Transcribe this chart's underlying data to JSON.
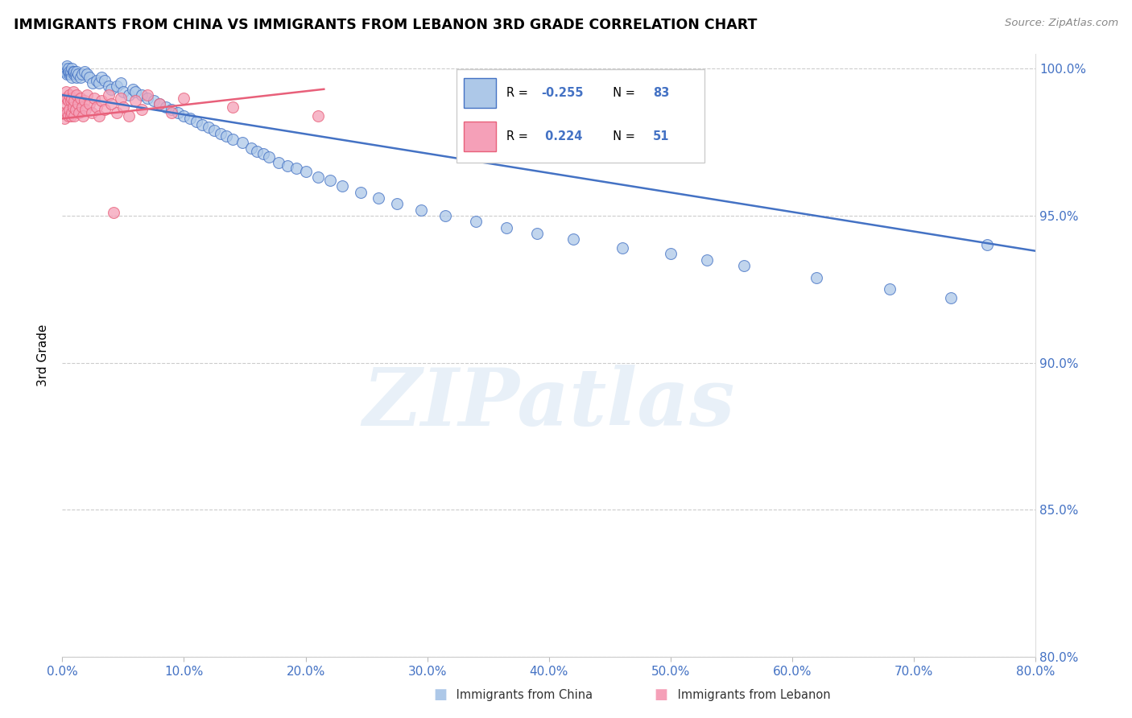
{
  "title": "IMMIGRANTS FROM CHINA VS IMMIGRANTS FROM LEBANON 3RD GRADE CORRELATION CHART",
  "source": "Source: ZipAtlas.com",
  "ylabel_label": "3rd Grade",
  "x_min": 0.0,
  "x_max": 0.8,
  "y_min": 0.8,
  "y_max": 1.005,
  "y_ticks": [
    0.8,
    0.85,
    0.9,
    0.95,
    1.0
  ],
  "x_ticks": [
    0.0,
    0.1,
    0.2,
    0.3,
    0.4,
    0.5,
    0.6,
    0.7,
    0.8
  ],
  "china_R": -0.255,
  "china_N": 83,
  "lebanon_R": 0.224,
  "lebanon_N": 51,
  "china_color": "#adc8e8",
  "lebanon_color": "#f5a0b8",
  "china_line_color": "#4472c4",
  "lebanon_line_color": "#e8607a",
  "watermark": "ZIPatlas",
  "china_line_x0": 0.0,
  "china_line_x1": 0.8,
  "china_line_y0": 0.991,
  "china_line_y1": 0.938,
  "lebanon_line_x0": 0.0,
  "lebanon_line_x1": 0.215,
  "lebanon_line_y0": 0.983,
  "lebanon_line_y1": 0.993,
  "china_pts_x": [
    0.002,
    0.003,
    0.003,
    0.004,
    0.004,
    0.005,
    0.005,
    0.006,
    0.006,
    0.007,
    0.007,
    0.008,
    0.008,
    0.009,
    0.01,
    0.01,
    0.011,
    0.012,
    0.012,
    0.013,
    0.015,
    0.016,
    0.018,
    0.02,
    0.022,
    0.025,
    0.028,
    0.03,
    0.032,
    0.035,
    0.038,
    0.04,
    0.045,
    0.048,
    0.05,
    0.055,
    0.058,
    0.06,
    0.065,
    0.07,
    0.075,
    0.08,
    0.085,
    0.09,
    0.095,
    0.1,
    0.105,
    0.11,
    0.115,
    0.12,
    0.125,
    0.13,
    0.135,
    0.14,
    0.148,
    0.155,
    0.16,
    0.165,
    0.17,
    0.178,
    0.185,
    0.192,
    0.2,
    0.21,
    0.22,
    0.23,
    0.245,
    0.26,
    0.275,
    0.295,
    0.315,
    0.34,
    0.365,
    0.39,
    0.42,
    0.46,
    0.5,
    0.53,
    0.56,
    0.62,
    0.68,
    0.73,
    0.76
  ],
  "china_pts_y": [
    0.999,
    1.0,
    0.999,
    0.998,
    1.001,
    0.999,
    1.0,
    0.998,
    0.999,
    0.998,
    0.999,
    0.997,
    1.0,
    0.999,
    0.998,
    0.999,
    0.998,
    0.997,
    0.999,
    0.998,
    0.997,
    0.998,
    0.999,
    0.998,
    0.997,
    0.995,
    0.996,
    0.995,
    0.997,
    0.996,
    0.994,
    0.993,
    0.994,
    0.995,
    0.992,
    0.991,
    0.993,
    0.992,
    0.991,
    0.99,
    0.989,
    0.988,
    0.987,
    0.986,
    0.985,
    0.984,
    0.983,
    0.982,
    0.981,
    0.98,
    0.979,
    0.978,
    0.977,
    0.976,
    0.975,
    0.973,
    0.972,
    0.971,
    0.97,
    0.968,
    0.967,
    0.966,
    0.965,
    0.963,
    0.962,
    0.96,
    0.958,
    0.956,
    0.954,
    0.952,
    0.95,
    0.948,
    0.946,
    0.944,
    0.942,
    0.939,
    0.937,
    0.935,
    0.933,
    0.929,
    0.925,
    0.922,
    0.94
  ],
  "lebanon_pts_x": [
    0.001,
    0.002,
    0.002,
    0.003,
    0.003,
    0.004,
    0.004,
    0.005,
    0.005,
    0.006,
    0.006,
    0.007,
    0.007,
    0.008,
    0.008,
    0.009,
    0.009,
    0.01,
    0.01,
    0.011,
    0.012,
    0.013,
    0.014,
    0.015,
    0.016,
    0.017,
    0.018,
    0.019,
    0.02,
    0.022,
    0.024,
    0.026,
    0.028,
    0.03,
    0.032,
    0.035,
    0.038,
    0.04,
    0.042,
    0.045,
    0.048,
    0.05,
    0.055,
    0.06,
    0.065,
    0.07,
    0.08,
    0.09,
    0.1,
    0.14,
    0.21
  ],
  "lebanon_pts_y": [
    0.985,
    0.99,
    0.983,
    0.988,
    0.992,
    0.985,
    0.99,
    0.984,
    0.989,
    0.986,
    0.991,
    0.984,
    0.989,
    0.985,
    0.99,
    0.987,
    0.992,
    0.984,
    0.989,
    0.986,
    0.991,
    0.988,
    0.985,
    0.99,
    0.987,
    0.984,
    0.989,
    0.986,
    0.991,
    0.988,
    0.985,
    0.99,
    0.987,
    0.984,
    0.989,
    0.986,
    0.991,
    0.988,
    0.951,
    0.985,
    0.99,
    0.987,
    0.984,
    0.989,
    0.986,
    0.991,
    0.988,
    0.985,
    0.99,
    0.987,
    0.984
  ]
}
